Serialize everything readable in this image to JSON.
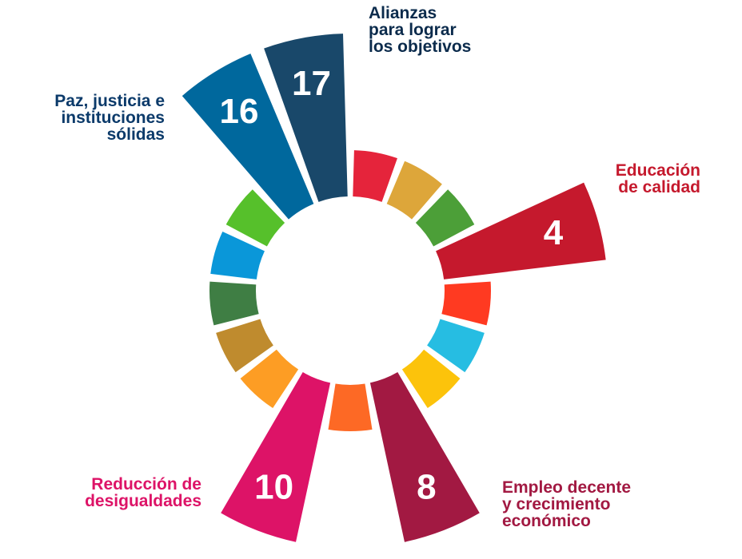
{
  "diagram": {
    "segments": [
      {
        "number": "",
        "color": "#e5243b",
        "highlighted": false
      },
      {
        "number": "",
        "color": "#dda63a",
        "highlighted": false
      },
      {
        "number": "",
        "color": "#4c9f38",
        "highlighted": false
      },
      {
        "number": "4",
        "color": "#c5192d",
        "highlighted": true
      },
      {
        "number": "",
        "color": "#ff3a21",
        "highlighted": false
      },
      {
        "number": "",
        "color": "#26bde2",
        "highlighted": false
      },
      {
        "number": "",
        "color": "#fcc30b",
        "highlighted": false
      },
      {
        "number": "8",
        "color": "#a21942",
        "highlighted": true
      },
      {
        "number": "",
        "color": "#fd6925",
        "highlighted": false
      },
      {
        "number": "10",
        "color": "#dd1367",
        "highlighted": true
      },
      {
        "number": "",
        "color": "#fd9d24",
        "highlighted": false
      },
      {
        "number": "",
        "color": "#bf8b2e",
        "highlighted": false
      },
      {
        "number": "",
        "color": "#3f7e44",
        "highlighted": false
      },
      {
        "number": "",
        "color": "#0a97d9",
        "highlighted": false
      },
      {
        "number": "",
        "color": "#56c02b",
        "highlighted": false
      },
      {
        "number": "16",
        "color": "#00689d",
        "highlighted": true
      },
      {
        "number": "17",
        "color": "#19486a",
        "highlighted": true
      }
    ],
    "labels": {
      "goal17": {
        "lines": [
          "Alianzas",
          "para lograr",
          "los objetivos"
        ],
        "color": "#0b2b4c"
      },
      "goal16": {
        "lines": [
          "Paz, justicia e",
          "instituciones",
          "sólidas"
        ],
        "color": "#0b3a6a"
      },
      "goal4": {
        "lines": [
          "Educación",
          "de calidad"
        ],
        "color": "#c5192d"
      },
      "goal10": {
        "lines": [
          "Reducción de",
          "desigualdades"
        ],
        "color": "#dd1367"
      },
      "goal8": {
        "lines": [
          "Empleo decente",
          "y crecimiento",
          "económico"
        ],
        "color": "#a21942"
      }
    }
  }
}
